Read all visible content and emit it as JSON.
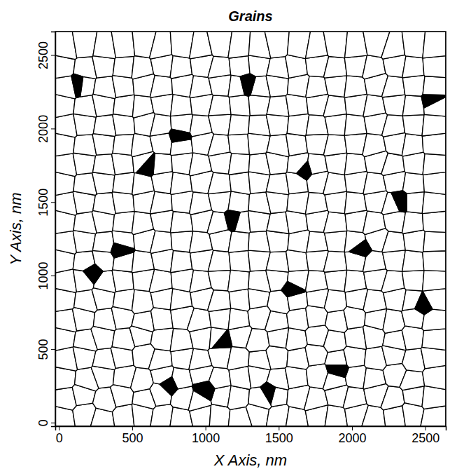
{
  "chart_data": {
    "type": "voronoi",
    "title": "Grains",
    "x_label": "X Axis, nm",
    "y_label": "Y Axis, nm",
    "xlim": [
      -25,
      2640
    ],
    "ylim": [
      -25,
      2660
    ],
    "xticks": [
      0,
      500,
      1000,
      1500,
      2000,
      2500
    ],
    "yticks": [
      0,
      500,
      1000,
      1500,
      2000,
      2500
    ],
    "grains": {
      "color": "#ffffff",
      "x": [
        20,
        180,
        290,
        450,
        560,
        712,
        820,
        980,
        1085,
        1240,
        1350,
        1505,
        1610,
        1770,
        1880,
        2035,
        2140,
        2300,
        2405,
        2560,
        50,
        160,
        320,
        425,
        585,
        690,
        850,
        955,
        1110,
        1215,
        1375,
        1480,
        1640,
        1745,
        1905,
        2010,
        2170,
        2275,
        2430,
        2540,
        30,
        190,
        300,
        450,
        560,
        715,
        825,
        975,
        1090,
        1245,
        1352,
        1500,
        1615,
        1770,
        1880,
        2030,
        2145,
        2295,
        2410,
        2565,
        55,
        165,
        315,
        428,
        580,
        692,
        845,
        958,
        1105,
        1220,
        1370,
        1485,
        1635,
        1750,
        1900,
        2012,
        2165,
        2278,
        2425,
        2545,
        25,
        185,
        295,
        448,
        555,
        710,
        828,
        978,
        1088,
        1238,
        1355,
        1503,
        1612,
        1765,
        1878,
        2032,
        2140,
        2298,
        2408,
        2560,
        50,
        162,
        318,
        430,
        582,
        695,
        842,
        955,
        1108,
        1218,
        1372,
        1482,
        1638,
        1748,
        1902,
        2010,
        2168,
        2275,
        2428,
        2548,
        28,
        188,
        298,
        452,
        558,
        714,
        822,
        982,
        1092,
        1242,
        1350,
        1508,
        1618,
        1768,
        1882,
        2036,
        2145,
        2302,
        2412,
        2562,
        52,
        165,
        320,
        432,
        578,
        690,
        848,
        960,
        1102,
        1222,
        1368,
        1488,
        1632,
        1752,
        1898,
        2015,
        2162,
        2280,
        2422,
        2550,
        22,
        182,
        302,
        446,
        562,
        718,
        826,
        976,
        1096,
        1236,
        1358,
        1498,
        1622,
        1762,
        1886,
        2028,
        2148,
        2292,
        2416,
        2556,
        48,
        168,
        312,
        436,
        586,
        696,
        840,
        962,
        1112,
        1224,
        1366,
        1490,
        1642,
        1755,
        1895,
        2018,
        2172,
        2282,
        2432,
        2552,
        26,
        186,
        296,
        450,
        560,
        712,
        830,
        980,
        1086,
        1240,
        1356,
        1504,
        1614,
        1766,
        1884,
        2034,
        2142,
        2300,
        2410,
        2558,
        54,
        164,
        316,
        434,
        584,
        694,
        846,
        958,
        1106,
        1220,
        1372,
        1486,
        1636,
        1750,
        1900,
        2014,
        2166,
        2280,
        2426,
        2546,
        24,
        184,
        300,
        448,
        564,
        716,
        824,
        978,
        1094,
        1244,
        1354,
        1500,
        1620,
        1764,
        1882,
        2030,
        2150,
        2296,
        2414,
        2564,
        50,
        166,
        314,
        430,
        580,
        698,
        844,
        956,
        1110,
        1226,
        1370,
        1484,
        1640,
        1746,
        1904,
        2012,
        2170,
        2276,
        2430,
        2550,
        28,
        180,
        304,
        444,
        556,
        710,
        828,
        984,
        1090,
        1234,
        1352,
        1506,
        1616,
        1760,
        1888,
        2026,
        2144,
        2304,
        2406,
        2560,
        52,
        170,
        318,
        438,
        588,
        692,
        838,
        964,
        1104,
        1228,
        1364,
        1492,
        1634,
        1756,
        1896,
        2016,
        2164,
        2284,
        2424,
        2546,
        22,
        186,
        298,
        454,
        562,
        714,
        826,
        976,
        1098,
        1238,
        1358,
        1502,
        1618,
        1768,
        1880,
        2032,
        2146,
        2294,
        2418,
        2558,
        48,
        164,
        320,
        432,
        582,
        696,
        848,
        960,
        1108,
        1222,
        1368,
        1488,
        1638,
        1752,
        1898,
        2014,
        2168,
        2282,
        2426,
        2552,
        26,
        182,
        302,
        448,
        558,
        716,
        822,
        980,
        1092,
        1242,
        1354,
        1504,
        1612,
        1764,
        1886,
        2028,
        2142,
        2300,
        2412,
        2562,
        50,
        168,
        316,
        436,
        584,
        692,
        842,
        962,
        1106,
        1226,
        1370,
        1486,
        1640,
        1750,
        1900,
        2016,
        2170,
        2280,
        2428,
        2550
      ],
      "y": [
        30,
        55,
        22,
        48,
        60,
        35,
        18,
        52,
        44,
        28,
        63,
        37,
        20,
        50,
        33,
        58,
        25,
        46,
        62,
        31,
        165,
        190,
        150,
        180,
        160,
        198,
        172,
        145,
        185,
        168,
        155,
        192,
        177,
        150,
        188,
        162,
        195,
        158,
        182,
        170,
        300,
        285,
        325,
        310,
        280,
        318,
        295,
        330,
        290,
        312,
        327,
        284,
        305,
        322,
        288,
        315,
        298,
        332,
        286,
        310,
        430,
        452,
        418,
        445,
        460,
        425,
        440,
        415,
        455,
        432,
        420,
        450,
        438,
        462,
        422,
        446,
        430,
        458,
        417,
        441,
        575,
        550,
        585,
        560,
        590,
        565,
        548,
        580,
        570,
        592,
        555,
        578,
        562,
        587,
        552,
        573,
        590,
        558,
        582,
        566,
        690,
        712,
        695,
        720,
        685,
        705,
        725,
        688,
        710,
        698,
        718,
        684,
        706,
        722,
        692,
        714,
        700,
        680,
        716,
        696,
        840,
        820,
        850,
        828,
        815,
        845,
        832,
        855,
        822,
        838,
        848,
        818,
        836,
        852,
        825,
        842,
        818,
        850,
        830,
        845,
        958,
        975,
        950,
        970,
        982,
        955,
        968,
        948,
        978,
        962,
        952,
        980,
        965,
        945,
        972,
        958,
        984,
        950,
        970,
        960,
        1105,
        1085,
        1110,
        1092,
        1080,
        1112,
        1098,
        1118,
        1088,
        1102,
        1115,
        1082,
        1100,
        1120,
        1090,
        1108,
        1084,
        1114,
        1095,
        1106,
        1220,
        1240,
        1215,
        1235,
        1248,
        1222,
        1232,
        1212,
        1245,
        1226,
        1218,
        1242,
        1228,
        1210,
        1238,
        1224,
        1250,
        1216,
        1236,
        1225,
        1370,
        1350,
        1375,
        1358,
        1345,
        1378,
        1362,
        1382,
        1352,
        1368,
        1380,
        1348,
        1365,
        1385,
        1355,
        1372,
        1350,
        1378,
        1360,
        1370,
        1485,
        1505,
        1480,
        1500,
        1512,
        1488,
        1498,
        1478,
        1510,
        1492,
        1482,
        1508,
        1494,
        1475,
        1502,
        1490,
        1515,
        1482,
        1500,
        1488,
        1632,
        1615,
        1640,
        1622,
        1610,
        1642,
        1628,
        1648,
        1618,
        1635,
        1645,
        1612,
        1630,
        1650,
        1620,
        1638,
        1614,
        1644,
        1625,
        1636,
        1750,
        1770,
        1745,
        1765,
        1778,
        1752,
        1762,
        1742,
        1775,
        1758,
        1748,
        1772,
        1756,
        1740,
        1768,
        1755,
        1780,
        1746,
        1764,
        1752,
        1895,
        1878,
        1902,
        1885,
        1872,
        1905,
        1890,
        1910,
        1880,
        1898,
        1908,
        1875,
        1892,
        1912,
        1882,
        1900,
        1876,
        1906,
        1888,
        1898,
        2015,
        2035,
        2010,
        2030,
        2042,
        2018,
        2028,
        2008,
        2040,
        2022,
        2012,
        2038,
        2024,
        2005,
        2032,
        2020,
        2045,
        2012,
        2030,
        2018,
        2160,
        2142,
        2165,
        2148,
        2138,
        2168,
        2155,
        2172,
        2145,
        2160,
        2170,
        2140,
        2158,
        2175,
        2146,
        2162,
        2140,
        2170,
        2152,
        2164,
        2278,
        2298,
        2272,
        2292,
        2305,
        2280,
        2290,
        2270,
        2302,
        2286,
        2275,
        2300,
        2288,
        2268,
        2296,
        2282,
        2308,
        2274,
        2294,
        2280,
        2425,
        2405,
        2430,
        2412,
        2400,
        2432,
        2418,
        2438,
        2408,
        2424,
        2434,
        2402,
        2420,
        2440,
        2410,
        2428,
        2404,
        2434,
        2415,
        2426,
        2545,
        2565,
        2540,
        2560,
        2575,
        2548,
        2558,
        2538,
        2570,
        2552,
        2542,
        2568,
        2555,
        2535,
        2562,
        2550,
        2578,
        2542,
        2560,
        2548
      ]
    },
    "voids": {
      "color": "#000000",
      "x": [
        1000,
        1450,
        750,
        220,
        600,
        1200,
        1680,
        2550,
        1280,
        2320,
        420,
        1900,
        820,
        2480,
        150,
        1600,
        1100,
        2050
      ],
      "y": [
        220,
        200,
        260,
        1020,
        1760,
        1380,
        1720,
        2180,
        2300,
        1500,
        1180,
        360,
        1940,
        800,
        2300,
        900,
        560,
        1180
      ]
    }
  }
}
